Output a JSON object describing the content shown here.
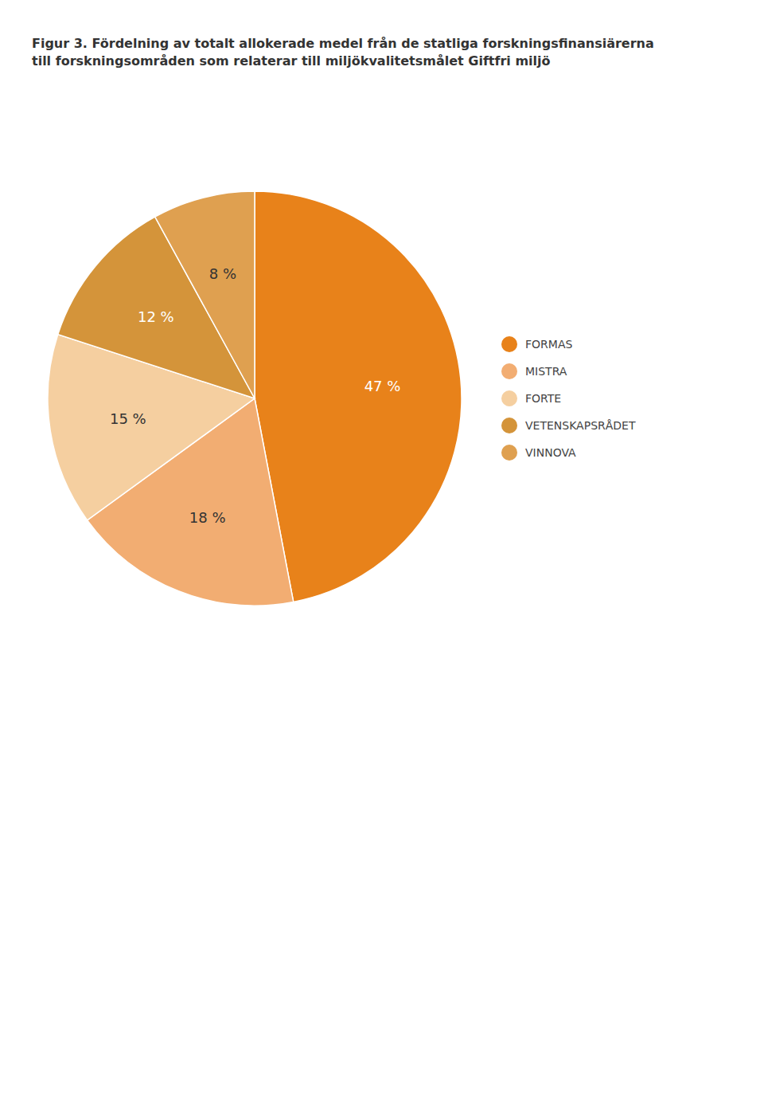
{
  "chart_data": {
    "type": "pie",
    "title": "Figur 3. Fördelning av totalt allokerade medel från de statliga forskningsfinansiärerna\ntill forskningsområden som relaterar till miljökvalitetsmålet Giftfri miljö",
    "categories": [
      "FORMAS",
      "MISTRA",
      "FORTE",
      "VETENSKAPSRÅDET",
      "VINNOVA"
    ],
    "values": [
      47,
      18,
      15,
      12,
      8
    ],
    "value_labels": [
      "47 %",
      "18 %",
      "15 %",
      "12 %",
      "8 %"
    ],
    "colors": [
      "#E8821A",
      "#F2AD72",
      "#F5CFA0",
      "#D4943A",
      "#DFA050"
    ],
    "data_labels": true,
    "legend": "right"
  }
}
